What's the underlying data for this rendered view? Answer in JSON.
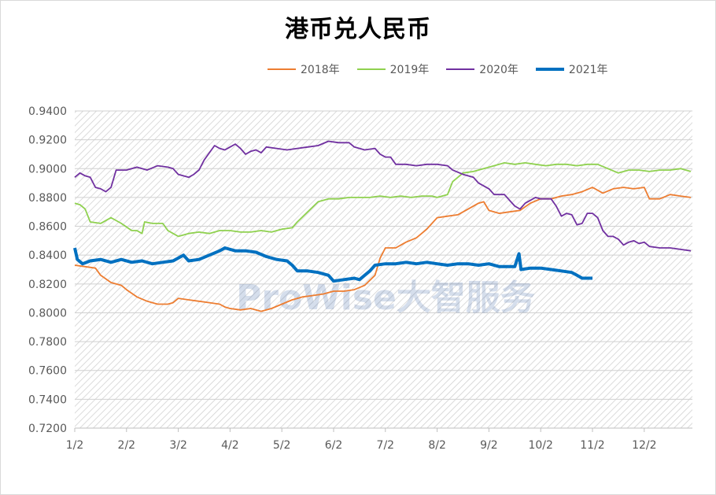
{
  "title": "港币兑人民币",
  "watermark": "ProWise大智服务",
  "colors": {
    "2018": "#ed7d31",
    "2019": "#8fd14f",
    "2020": "#7030a0",
    "2021": "#0070c0",
    "grid": "#d0d0d0",
    "hatch": "#cfcfcf"
  },
  "chart_data": {
    "type": "line",
    "title": "港币兑人民币",
    "xlabel": "",
    "ylabel": "",
    "x_ticks": [
      "1/2",
      "2/2",
      "3/2",
      "4/2",
      "5/2",
      "6/2",
      "7/2",
      "8/2",
      "9/2",
      "10/2",
      "11/2",
      "12/2"
    ],
    "ylim": [
      0.72,
      0.94
    ],
    "y_ticks": [
      "0.9400",
      "0.9200",
      "0.9000",
      "0.8800",
      "0.8600",
      "0.8400",
      "0.8200",
      "0.8000",
      "0.7800",
      "0.7600",
      "0.7400",
      "0.7200"
    ],
    "y_tick_values": [
      0.94,
      0.92,
      0.9,
      0.88,
      0.86,
      0.84,
      0.82,
      0.8,
      0.78,
      0.76,
      0.74,
      0.72
    ],
    "grid": true,
    "legend_position": "top-right",
    "series": [
      {
        "name": "2018年",
        "points": [
          [
            1,
            0.833
          ],
          [
            1.2,
            0.832
          ],
          [
            1.4,
            0.831
          ],
          [
            1.5,
            0.826
          ],
          [
            1.7,
            0.821
          ],
          [
            1.9,
            0.819
          ],
          [
            2.0,
            0.816
          ],
          [
            2.2,
            0.811
          ],
          [
            2.4,
            0.808
          ],
          [
            2.6,
            0.806
          ],
          [
            2.8,
            0.806
          ],
          [
            2.9,
            0.807
          ],
          [
            3.0,
            0.81
          ],
          [
            3.2,
            0.809
          ],
          [
            3.4,
            0.808
          ],
          [
            3.6,
            0.807
          ],
          [
            3.8,
            0.806
          ],
          [
            3.9,
            0.804
          ],
          [
            4.0,
            0.803
          ],
          [
            4.2,
            0.802
          ],
          [
            4.4,
            0.803
          ],
          [
            4.6,
            0.801
          ],
          [
            4.8,
            0.803
          ],
          [
            5.0,
            0.806
          ],
          [
            5.2,
            0.809
          ],
          [
            5.4,
            0.811
          ],
          [
            5.6,
            0.812
          ],
          [
            5.8,
            0.813
          ],
          [
            6.0,
            0.815
          ],
          [
            6.2,
            0.815
          ],
          [
            6.4,
            0.816
          ],
          [
            6.6,
            0.819
          ],
          [
            6.8,
            0.826
          ],
          [
            6.9,
            0.838
          ],
          [
            7.0,
            0.845
          ],
          [
            7.2,
            0.845
          ],
          [
            7.4,
            0.849
          ],
          [
            7.6,
            0.852
          ],
          [
            7.8,
            0.858
          ],
          [
            8.0,
            0.866
          ],
          [
            8.2,
            0.867
          ],
          [
            8.4,
            0.868
          ],
          [
            8.6,
            0.872
          ],
          [
            8.8,
            0.876
          ],
          [
            8.9,
            0.877
          ],
          [
            9.0,
            0.871
          ],
          [
            9.2,
            0.869
          ],
          [
            9.4,
            0.87
          ],
          [
            9.6,
            0.871
          ],
          [
            9.8,
            0.876
          ],
          [
            10.0,
            0.879
          ],
          [
            10.2,
            0.879
          ],
          [
            10.4,
            0.881
          ],
          [
            10.6,
            0.882
          ],
          [
            10.8,
            0.884
          ],
          [
            11.0,
            0.887
          ],
          [
            11.2,
            0.883
          ],
          [
            11.4,
            0.886
          ],
          [
            11.6,
            0.887
          ],
          [
            11.8,
            0.886
          ],
          [
            12.0,
            0.887
          ],
          [
            12.1,
            0.879
          ],
          [
            12.3,
            0.879
          ],
          [
            12.5,
            0.882
          ],
          [
            12.7,
            0.881
          ],
          [
            12.9,
            0.88
          ]
        ]
      },
      {
        "name": "2019年",
        "points": [
          [
            1,
            0.876
          ],
          [
            1.1,
            0.875
          ],
          [
            1.2,
            0.872
          ],
          [
            1.3,
            0.863
          ],
          [
            1.5,
            0.862
          ],
          [
            1.7,
            0.866
          ],
          [
            1.9,
            0.862
          ],
          [
            2.1,
            0.857
          ],
          [
            2.2,
            0.857
          ],
          [
            2.3,
            0.855
          ],
          [
            2.35,
            0.863
          ],
          [
            2.5,
            0.862
          ],
          [
            2.7,
            0.862
          ],
          [
            2.8,
            0.857
          ],
          [
            2.9,
            0.855
          ],
          [
            3.0,
            0.853
          ],
          [
            3.2,
            0.855
          ],
          [
            3.4,
            0.856
          ],
          [
            3.6,
            0.855
          ],
          [
            3.8,
            0.857
          ],
          [
            4.0,
            0.857
          ],
          [
            4.2,
            0.856
          ],
          [
            4.4,
            0.856
          ],
          [
            4.6,
            0.857
          ],
          [
            4.8,
            0.856
          ],
          [
            5.0,
            0.858
          ],
          [
            5.2,
            0.859
          ],
          [
            5.3,
            0.863
          ],
          [
            5.5,
            0.87
          ],
          [
            5.7,
            0.877
          ],
          [
            5.9,
            0.879
          ],
          [
            6.1,
            0.879
          ],
          [
            6.3,
            0.88
          ],
          [
            6.5,
            0.88
          ],
          [
            6.7,
            0.88
          ],
          [
            6.9,
            0.881
          ],
          [
            7.1,
            0.88
          ],
          [
            7.3,
            0.881
          ],
          [
            7.5,
            0.88
          ],
          [
            7.7,
            0.881
          ],
          [
            7.9,
            0.881
          ],
          [
            8.0,
            0.88
          ],
          [
            8.2,
            0.882
          ],
          [
            8.3,
            0.891
          ],
          [
            8.5,
            0.897
          ],
          [
            8.7,
            0.898
          ],
          [
            8.9,
            0.9
          ],
          [
            9.1,
            0.902
          ],
          [
            9.3,
            0.904
          ],
          [
            9.5,
            0.903
          ],
          [
            9.7,
            0.904
          ],
          [
            9.9,
            0.903
          ],
          [
            10.1,
            0.902
          ],
          [
            10.3,
            0.903
          ],
          [
            10.5,
            0.903
          ],
          [
            10.7,
            0.902
          ],
          [
            10.9,
            0.903
          ],
          [
            11.1,
            0.903
          ],
          [
            11.3,
            0.9
          ],
          [
            11.5,
            0.897
          ],
          [
            11.7,
            0.899
          ],
          [
            11.9,
            0.899
          ],
          [
            12.1,
            0.898
          ],
          [
            12.3,
            0.899
          ],
          [
            12.5,
            0.899
          ],
          [
            12.7,
            0.9
          ],
          [
            12.9,
            0.898
          ]
        ]
      },
      {
        "name": "2020年",
        "points": [
          [
            1,
            0.894
          ],
          [
            1.1,
            0.897
          ],
          [
            1.2,
            0.895
          ],
          [
            1.3,
            0.894
          ],
          [
            1.4,
            0.887
          ],
          [
            1.5,
            0.886
          ],
          [
            1.6,
            0.884
          ],
          [
            1.7,
            0.887
          ],
          [
            1.8,
            0.899
          ],
          [
            2.0,
            0.899
          ],
          [
            2.2,
            0.901
          ],
          [
            2.4,
            0.899
          ],
          [
            2.6,
            0.902
          ],
          [
            2.8,
            0.901
          ],
          [
            2.9,
            0.9
          ],
          [
            3.0,
            0.896
          ],
          [
            3.2,
            0.894
          ],
          [
            3.3,
            0.896
          ],
          [
            3.4,
            0.899
          ],
          [
            3.5,
            0.906
          ],
          [
            3.6,
            0.911
          ],
          [
            3.7,
            0.916
          ],
          [
            3.8,
            0.914
          ],
          [
            3.9,
            0.913
          ],
          [
            4.0,
            0.915
          ],
          [
            4.1,
            0.917
          ],
          [
            4.2,
            0.914
          ],
          [
            4.3,
            0.91
          ],
          [
            4.4,
            0.912
          ],
          [
            4.5,
            0.913
          ],
          [
            4.6,
            0.911
          ],
          [
            4.7,
            0.915
          ],
          [
            4.9,
            0.914
          ],
          [
            5.1,
            0.913
          ],
          [
            5.3,
            0.914
          ],
          [
            5.5,
            0.915
          ],
          [
            5.7,
            0.916
          ],
          [
            5.9,
            0.919
          ],
          [
            6.1,
            0.918
          ],
          [
            6.3,
            0.918
          ],
          [
            6.4,
            0.915
          ],
          [
            6.6,
            0.913
          ],
          [
            6.8,
            0.914
          ],
          [
            6.9,
            0.91
          ],
          [
            7.0,
            0.908
          ],
          [
            7.1,
            0.908
          ],
          [
            7.2,
            0.903
          ],
          [
            7.4,
            0.903
          ],
          [
            7.6,
            0.902
          ],
          [
            7.8,
            0.903
          ],
          [
            8.0,
            0.903
          ],
          [
            8.2,
            0.902
          ],
          [
            8.3,
            0.899
          ],
          [
            8.5,
            0.896
          ],
          [
            8.7,
            0.894
          ],
          [
            8.8,
            0.89
          ],
          [
            9.0,
            0.886
          ],
          [
            9.1,
            0.882
          ],
          [
            9.3,
            0.882
          ],
          [
            9.4,
            0.878
          ],
          [
            9.5,
            0.874
          ],
          [
            9.6,
            0.872
          ],
          [
            9.7,
            0.876
          ],
          [
            9.9,
            0.88
          ],
          [
            10.0,
            0.879
          ],
          [
            10.2,
            0.879
          ],
          [
            10.3,
            0.874
          ],
          [
            10.4,
            0.867
          ],
          [
            10.5,
            0.869
          ],
          [
            10.6,
            0.868
          ],
          [
            10.7,
            0.861
          ],
          [
            10.8,
            0.862
          ],
          [
            10.9,
            0.869
          ],
          [
            11.0,
            0.869
          ],
          [
            11.1,
            0.866
          ],
          [
            11.2,
            0.857
          ],
          [
            11.3,
            0.853
          ],
          [
            11.4,
            0.853
          ],
          [
            11.5,
            0.851
          ],
          [
            11.6,
            0.847
          ],
          [
            11.7,
            0.849
          ],
          [
            11.8,
            0.85
          ],
          [
            11.9,
            0.848
          ],
          [
            12.0,
            0.849
          ],
          [
            12.1,
            0.846
          ],
          [
            12.3,
            0.845
          ],
          [
            12.5,
            0.845
          ],
          [
            12.7,
            0.844
          ],
          [
            12.9,
            0.843
          ]
        ]
      },
      {
        "name": "2021年",
        "points": [
          [
            1,
            0.845
          ],
          [
            1.05,
            0.837
          ],
          [
            1.15,
            0.834
          ],
          [
            1.3,
            0.836
          ],
          [
            1.5,
            0.837
          ],
          [
            1.7,
            0.835
          ],
          [
            1.9,
            0.837
          ],
          [
            2.1,
            0.835
          ],
          [
            2.3,
            0.836
          ],
          [
            2.5,
            0.834
          ],
          [
            2.7,
            0.835
          ],
          [
            2.9,
            0.836
          ],
          [
            3.1,
            0.84
          ],
          [
            3.2,
            0.836
          ],
          [
            3.4,
            0.837
          ],
          [
            3.6,
            0.84
          ],
          [
            3.8,
            0.843
          ],
          [
            3.9,
            0.845
          ],
          [
            4.1,
            0.843
          ],
          [
            4.3,
            0.843
          ],
          [
            4.5,
            0.842
          ],
          [
            4.7,
            0.839
          ],
          [
            4.9,
            0.837
          ],
          [
            5.1,
            0.836
          ],
          [
            5.2,
            0.833
          ],
          [
            5.3,
            0.829
          ],
          [
            5.5,
            0.829
          ],
          [
            5.7,
            0.828
          ],
          [
            5.9,
            0.826
          ],
          [
            6.0,
            0.822
          ],
          [
            6.2,
            0.823
          ],
          [
            6.4,
            0.824
          ],
          [
            6.5,
            0.823
          ],
          [
            6.6,
            0.826
          ],
          [
            6.7,
            0.829
          ],
          [
            6.8,
            0.833
          ],
          [
            7.0,
            0.834
          ],
          [
            7.2,
            0.834
          ],
          [
            7.4,
            0.835
          ],
          [
            7.6,
            0.834
          ],
          [
            7.8,
            0.835
          ],
          [
            8.0,
            0.834
          ],
          [
            8.2,
            0.833
          ],
          [
            8.4,
            0.834
          ],
          [
            8.6,
            0.834
          ],
          [
            8.8,
            0.833
          ],
          [
            9.0,
            0.834
          ],
          [
            9.2,
            0.832
          ],
          [
            9.4,
            0.832
          ],
          [
            9.5,
            0.832
          ],
          [
            9.58,
            0.841
          ],
          [
            9.62,
            0.83
          ],
          [
            9.8,
            0.831
          ],
          [
            10.0,
            0.831
          ],
          [
            10.2,
            0.83
          ],
          [
            10.4,
            0.829
          ],
          [
            10.6,
            0.828
          ],
          [
            10.7,
            0.826
          ],
          [
            10.8,
            0.824
          ],
          [
            11.0,
            0.824
          ]
        ]
      }
    ]
  }
}
